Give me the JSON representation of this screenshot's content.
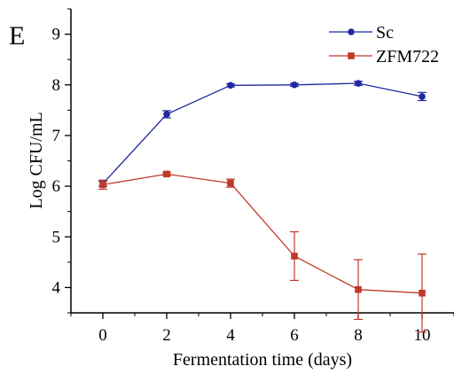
{
  "panel_label": "E",
  "chart_data": {
    "type": "line",
    "xlabel": "Fermentation time (days)",
    "ylabel": "Log CFU/mL",
    "xlim": [
      -1,
      11
    ],
    "ylim": [
      3.5,
      9.5
    ],
    "xticks": [
      0,
      2,
      4,
      6,
      8,
      10
    ],
    "yticks": [
      4,
      5,
      6,
      7,
      8,
      9
    ],
    "legend_position": "top-right",
    "grid": false,
    "series": [
      {
        "name": "Sc",
        "color": "#1f2a9c",
        "marker": "circle",
        "x": [
          0,
          2,
          4,
          6,
          8,
          10
        ],
        "y": [
          6.05,
          7.42,
          7.99,
          8.0,
          8.03,
          7.77
        ],
        "error": [
          0.05,
          0.07,
          0.03,
          0.03,
          0.04,
          0.08
        ]
      },
      {
        "name": "ZFM722",
        "color": "#c0392b",
        "marker": "square",
        "x": [
          0,
          2,
          4,
          6,
          8,
          10
        ],
        "y": [
          6.03,
          6.24,
          6.06,
          4.62,
          3.96,
          3.89
        ],
        "error": [
          0.09,
          0.03,
          0.08,
          0.48,
          0.59,
          0.77
        ]
      }
    ]
  }
}
